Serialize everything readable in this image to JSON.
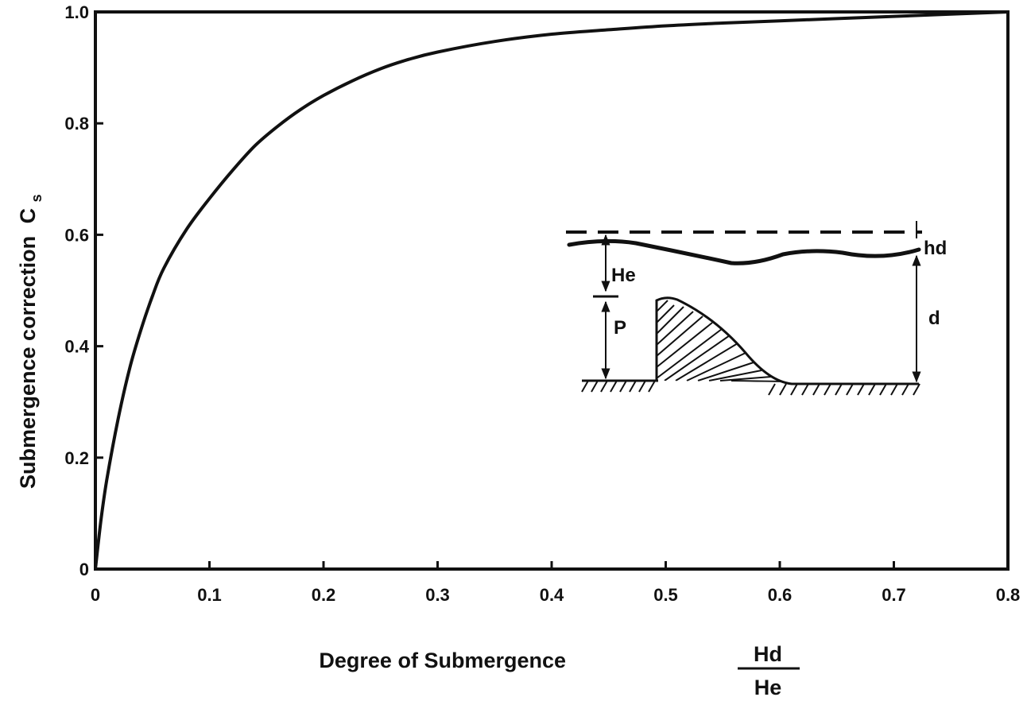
{
  "chart_data": {
    "type": "line",
    "xlabel": "Degree of Submergence",
    "xlabel_fraction": {
      "numerator": "Hd",
      "denominator": "He"
    },
    "ylabel": "Submergence correction",
    "ylabel_symbol": "C",
    "ylabel_subscript": "s",
    "xlim": [
      0,
      0.8
    ],
    "ylim": [
      0,
      1.0
    ],
    "x_ticks": [
      0,
      0.1,
      0.2,
      0.3,
      0.4,
      0.5,
      0.6,
      0.7,
      0.8
    ],
    "x_tick_labels": [
      "0",
      "0.1",
      "0.2",
      "0.3",
      "0.4",
      "0.5",
      "0.6",
      "0.7",
      "0.8"
    ],
    "y_ticks": [
      0,
      0.2,
      0.4,
      0.6,
      0.8,
      1.0
    ],
    "y_tick_labels": [
      "0",
      "0.2",
      "0.4",
      "0.6",
      "0.8",
      "1.0"
    ],
    "grid": false,
    "series": [
      {
        "x": [
          0,
          0.005,
          0.01,
          0.02,
          0.03,
          0.04,
          0.05,
          0.06,
          0.08,
          0.1,
          0.12,
          0.14,
          0.16,
          0.18,
          0.2,
          0.225,
          0.25,
          0.275,
          0.3,
          0.35,
          0.4,
          0.45,
          0.5,
          0.55,
          0.6,
          0.65,
          0.7,
          0.75,
          0.8
        ],
        "y": [
          0,
          0.09,
          0.16,
          0.27,
          0.36,
          0.43,
          0.49,
          0.54,
          0.61,
          0.665,
          0.715,
          0.76,
          0.795,
          0.825,
          0.85,
          0.876,
          0.898,
          0.915,
          0.928,
          0.947,
          0.96,
          0.968,
          0.975,
          0.98,
          0.984,
          0.988,
          0.992,
          0.996,
          1.0
        ]
      }
    ],
    "inset_labels": {
      "tailwater_depth": "hd",
      "head": "He",
      "weir_height": "P",
      "downstream_depth": "d"
    }
  }
}
